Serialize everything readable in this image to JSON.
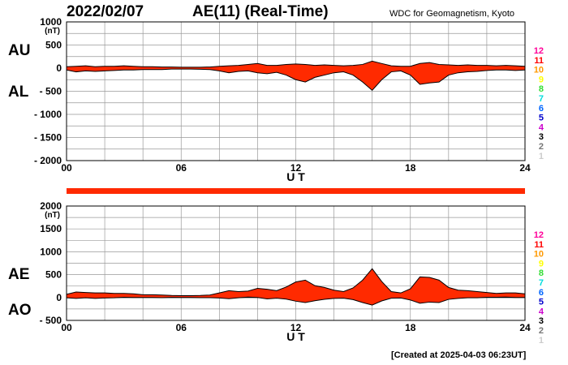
{
  "header": {
    "date": "2022/02/07",
    "title": "AE(11) (Real-Time)",
    "organization": "WDC for Geomagnetism, Kyoto"
  },
  "footer": {
    "created": "[Created at 2025-04-03 06:23UT]"
  },
  "station_counts": [
    {
      "label": "12",
      "color": "#ff0099"
    },
    {
      "label": "11",
      "color": "#ff0000"
    },
    {
      "label": "10",
      "color": "#ff9900"
    },
    {
      "label": "9",
      "color": "#ffff00"
    },
    {
      "label": "8",
      "color": "#33dd33"
    },
    {
      "label": "7",
      "color": "#00dddd"
    },
    {
      "label": "6",
      "color": "#0066ff"
    },
    {
      "label": "5",
      "color": "#0000cc"
    },
    {
      "label": "4",
      "color": "#cc00cc"
    },
    {
      "label": "3",
      "color": "#000000"
    },
    {
      "label": "2",
      "color": "#777777"
    },
    {
      "label": "1",
      "color": "#cccccc"
    }
  ],
  "colors": {
    "fill": "#ff2a00",
    "grid": "#999999",
    "outline": "#000000"
  },
  "chart_data": [
    {
      "type": "area",
      "panel": "AU/AL",
      "upper_label": "AU",
      "lower_label": "AL",
      "xlabel": "U T",
      "ylabel_unit": "(nT)",
      "xlim": [
        0,
        24
      ],
      "ylim": [
        -2000,
        1000
      ],
      "x_ticks": [
        0,
        6,
        12,
        18,
        24
      ],
      "x_tick_labels": [
        "00",
        "06",
        "12",
        "18",
        "24"
      ],
      "y_ticks": [
        1000,
        500,
        0,
        -500,
        -1000,
        -1500,
        -2000
      ],
      "y_tick_labels": [
        "1000",
        "500",
        "0",
        "- 500",
        "- 1000",
        "- 1500",
        "- 2000"
      ],
      "grid": true,
      "x": [
        0,
        0.5,
        1,
        1.5,
        2,
        2.5,
        3,
        3.5,
        4,
        4.5,
        5,
        5.5,
        6,
        6.5,
        7,
        7.5,
        8,
        8.5,
        9,
        9.5,
        10,
        10.5,
        11,
        11.5,
        12,
        12.5,
        13,
        13.5,
        14,
        14.5,
        15,
        15.5,
        16,
        16.5,
        17,
        17.5,
        18,
        18.5,
        19,
        19.5,
        20,
        20.5,
        21,
        21.5,
        22,
        22.5,
        23,
        23.5,
        24
      ],
      "series": [
        {
          "name": "AU",
          "values": [
            30,
            40,
            50,
            30,
            40,
            40,
            50,
            40,
            30,
            30,
            25,
            25,
            20,
            20,
            20,
            25,
            40,
            50,
            60,
            80,
            100,
            60,
            60,
            80,
            90,
            80,
            60,
            70,
            60,
            50,
            60,
            80,
            150,
            100,
            50,
            40,
            40,
            100,
            120,
            80,
            70,
            60,
            70,
            60,
            60,
            50,
            60,
            50,
            40
          ]
        },
        {
          "name": "AL",
          "values": [
            -40,
            -80,
            -60,
            -70,
            -60,
            -50,
            -40,
            -40,
            -30,
            -30,
            -30,
            -20,
            -20,
            -20,
            -25,
            -30,
            -60,
            -100,
            -70,
            -60,
            -100,
            -120,
            -90,
            -150,
            -250,
            -300,
            -200,
            -150,
            -100,
            -80,
            -150,
            -300,
            -480,
            -250,
            -80,
            -60,
            -150,
            -350,
            -320,
            -300,
            -150,
            -100,
            -80,
            -70,
            -50,
            -40,
            -40,
            -50,
            -40
          ]
        }
      ]
    },
    {
      "type": "area",
      "panel": "AE/AO",
      "upper_label": "AE",
      "lower_label": "AO",
      "xlabel": "U T",
      "ylabel_unit": "(nT)",
      "xlim": [
        0,
        24
      ],
      "ylim": [
        -500,
        2000
      ],
      "x_ticks": [
        0,
        6,
        12,
        18,
        24
      ],
      "x_tick_labels": [
        "00",
        "06",
        "12",
        "18",
        "24"
      ],
      "y_ticks": [
        2000,
        1500,
        1000,
        500,
        0,
        -500
      ],
      "y_tick_labels": [
        "2000",
        "1500",
        "1000",
        "500",
        "0",
        "- 500"
      ],
      "grid": true,
      "x": [
        0,
        0.5,
        1,
        1.5,
        2,
        2.5,
        3,
        3.5,
        4,
        4.5,
        5,
        5.5,
        6,
        6.5,
        7,
        7.5,
        8,
        8.5,
        9,
        9.5,
        10,
        10.5,
        11,
        11.5,
        12,
        12.5,
        13,
        13.5,
        14,
        14.5,
        15,
        15.5,
        16,
        16.5,
        17,
        17.5,
        18,
        18.5,
        19,
        19.5,
        20,
        20.5,
        21,
        21.5,
        22,
        22.5,
        23,
        23.5,
        24
      ],
      "series": [
        {
          "name": "AE",
          "values": [
            70,
            120,
            110,
            100,
            100,
            90,
            90,
            80,
            60,
            60,
            55,
            45,
            40,
            40,
            45,
            55,
            100,
            150,
            130,
            140,
            200,
            180,
            150,
            230,
            340,
            380,
            260,
            220,
            160,
            130,
            210,
            380,
            630,
            350,
            130,
            100,
            190,
            450,
            440,
            380,
            220,
            160,
            150,
            130,
            110,
            90,
            100,
            100,
            80
          ]
        },
        {
          "name": "AO",
          "values": [
            -5,
            -20,
            -5,
            -20,
            -10,
            -5,
            5,
            0,
            0,
            0,
            -3,
            3,
            0,
            0,
            -3,
            -3,
            -10,
            -25,
            -5,
            10,
            0,
            -30,
            -15,
            -35,
            -80,
            -110,
            -70,
            -40,
            -20,
            -15,
            -45,
            -110,
            -165,
            -75,
            -15,
            -10,
            -55,
            -125,
            -100,
            -110,
            -40,
            -20,
            -5,
            -5,
            5,
            5,
            10,
            0,
            0
          ]
        }
      ]
    }
  ]
}
